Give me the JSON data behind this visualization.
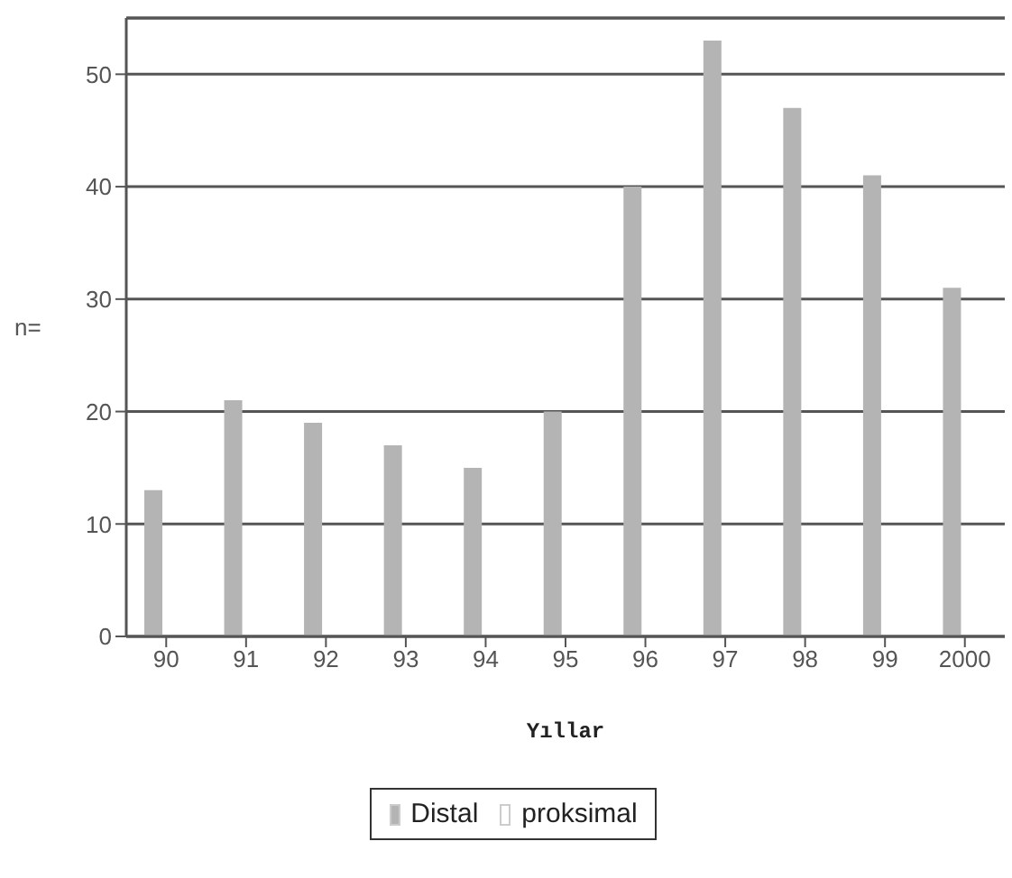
{
  "chart_data": {
    "type": "bar",
    "xlabel": "Yıllar",
    "ylabel": "n=",
    "categories": [
      "90",
      "91",
      "92",
      "93",
      "94",
      "95",
      "96",
      "97",
      "98",
      "99",
      "2000"
    ],
    "series": [
      {
        "name": "Distal",
        "color": "#b4b4b4",
        "values": [
          13,
          21,
          19,
          17,
          15,
          20,
          40,
          53,
          47,
          41,
          31
        ]
      },
      {
        "name": "proksimal",
        "color": "#ffffff",
        "values": [
          null,
          null,
          null,
          null,
          null,
          null,
          null,
          null,
          null,
          null,
          null
        ]
      }
    ],
    "ylim": [
      0,
      55
    ],
    "yticks": [
      0,
      10,
      20,
      30,
      40,
      50
    ],
    "grid": "y",
    "legend": "bottom"
  }
}
